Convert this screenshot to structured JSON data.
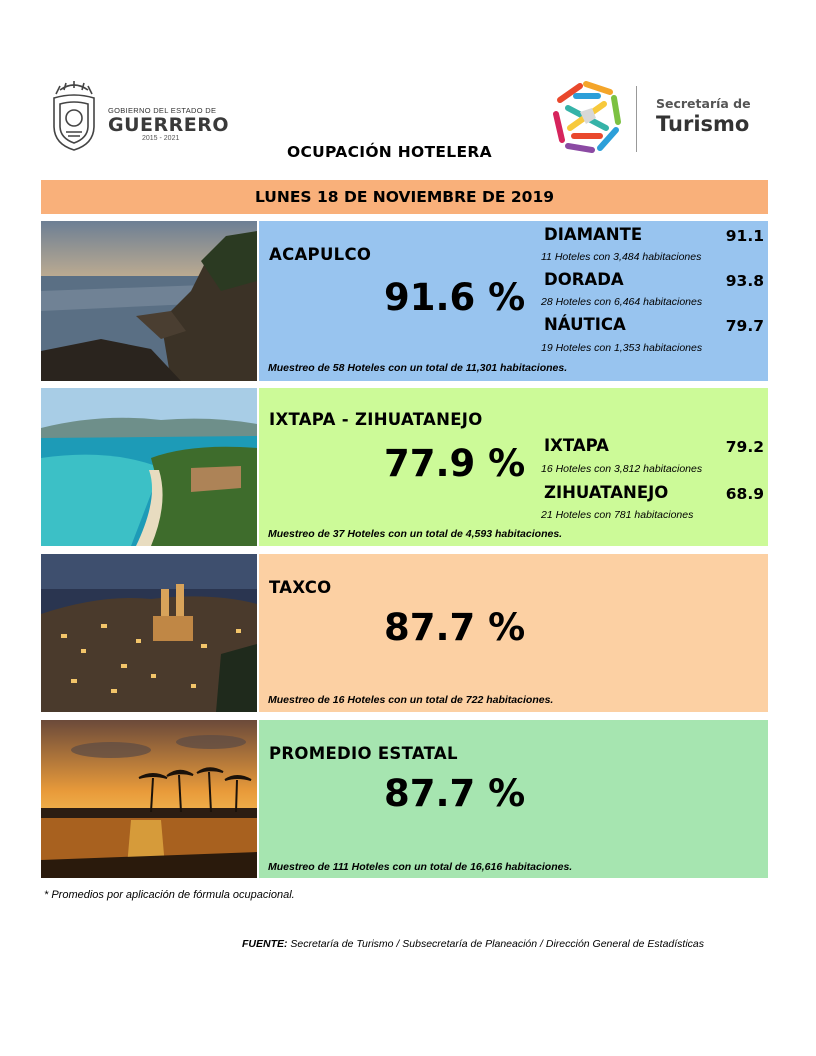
{
  "header": {
    "gov_small": "GOBIERNO DEL ESTADO DE",
    "gov_big": "GUERRERO",
    "gov_years": "2015 - 2021",
    "tur_small": "Secretaría de",
    "tur_big": "Turismo",
    "title": "OCUPACIÓN HOTELERA"
  },
  "date_label": "LUNES 18 DE NOVIEMBRE DE 2019",
  "panels": {
    "acapulco": {
      "region": "ACAPULCO",
      "percent": "91.6 %",
      "sample": "Muestreo de 58 Hoteles con un total de 11,301 habitaciones.",
      "zones": [
        {
          "name": "DIAMANTE",
          "value": "91.1",
          "note": "11 Hoteles con 3,484 habitaciones"
        },
        {
          "name": "DORADA",
          "value": "93.8",
          "note": "28 Hoteles con 6,464 habitaciones"
        },
        {
          "name": "NÁUTICA",
          "value": "79.7",
          "note": "19 Hoteles con 1,353 habitaciones"
        }
      ]
    },
    "ixtapa": {
      "region": "IXTAPA - ZIHUATANEJO",
      "percent": "77.9 %",
      "sample": "Muestreo de 37 Hoteles con un total de 4,593 habitaciones.",
      "zones": [
        {
          "name": "IXTAPA",
          "value": "79.2",
          "note": "16 Hoteles con 3,812 habitaciones"
        },
        {
          "name": "ZIHUATANEJO",
          "value": "68.9",
          "note": "21 Hoteles con 781 habitaciones"
        }
      ]
    },
    "taxco": {
      "region": "TAXCO",
      "percent": "87.7 %",
      "sample": "Muestreo de 16 Hoteles con un total de 722 habitaciones."
    },
    "estatal": {
      "region": "PROMEDIO ESTATAL",
      "percent": "87.7 %",
      "sample": "Muestreo de 111 Hoteles con un total de 16,616 habitaciones."
    }
  },
  "footnote": "* Promedios por aplicación de fórmula ocupacional.",
  "source_label": "FUENTE:",
  "source_text": "Secretaría de Turismo / Subsecretaría de Planeación / Dirección General de Estadísticas",
  "colors": {
    "date_bar": "#f9b07a",
    "acapulco": "#98c4ef",
    "ixtapa": "#ccfa98",
    "taxco": "#fcd0a3",
    "estatal": "#a6e5b0"
  }
}
